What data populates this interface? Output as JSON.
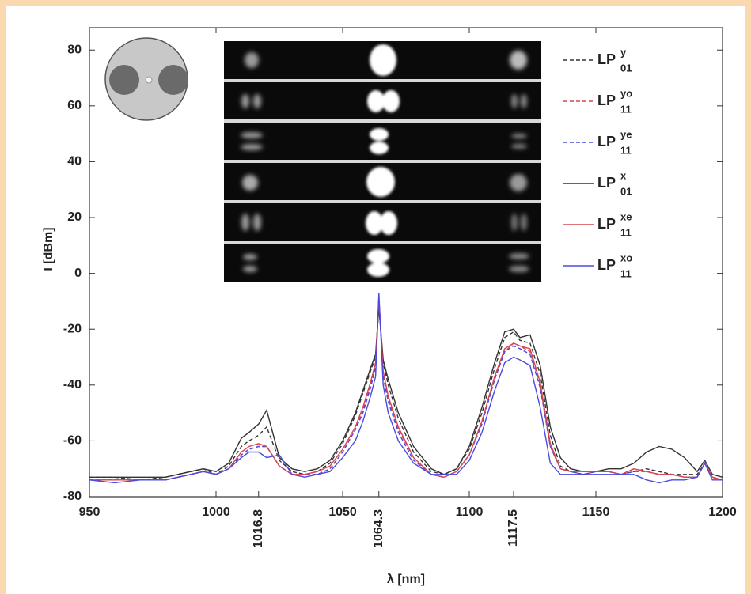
{
  "chart_data": {
    "type": "line",
    "xlabel": "λ [nm]",
    "ylabel": "I [dBm]",
    "xlim": [
      950,
      1200
    ],
    "ylim": [
      -80,
      88
    ],
    "xticks": [
      950,
      1000,
      1050,
      1100,
      1150,
      1200
    ],
    "peak_ticks": [
      1016.8,
      1064.3,
      1117.5
    ],
    "yticks": [
      -80,
      -60,
      -40,
      -20,
      0,
      20,
      40,
      60,
      80
    ],
    "x": [
      950,
      960,
      970,
      980,
      990,
      995,
      1000,
      1005,
      1010,
      1013,
      1016.8,
      1020,
      1025,
      1030,
      1035,
      1040,
      1045,
      1050,
      1055,
      1058,
      1061,
      1063,
      1064.3,
      1066,
      1068,
      1072,
      1078,
      1085,
      1090,
      1095,
      1100,
      1105,
      1110,
      1114,
      1117.5,
      1120,
      1124,
      1128,
      1132,
      1136,
      1140,
      1145,
      1150,
      1155,
      1160,
      1165,
      1170,
      1175,
      1180,
      1185,
      1190,
      1193,
      1196,
      1200
    ],
    "series": [
      {
        "name": "LP",
        "superscript": "y",
        "subscript": "01",
        "color": "#333333",
        "dash": true,
        "values": [
          -73,
          -73,
          -74,
          -73,
          -71,
          -70,
          -72,
          -69,
          -62,
          -60,
          -58,
          -55,
          -67,
          -71,
          -72,
          -71,
          -68,
          -61,
          -51,
          -43,
          -35,
          -30,
          -12,
          -32,
          -40,
          -52,
          -64,
          -71,
          -72,
          -70,
          -63,
          -50,
          -34,
          -23,
          -21,
          -24,
          -25,
          -36,
          -58,
          -69,
          -71,
          -72,
          -71,
          -71,
          -72,
          -71,
          -70,
          -71,
          -72,
          -72,
          -72,
          -68,
          -73,
          -74
        ]
      },
      {
        "name": "LP",
        "superscript": "yo",
        "subscript": "11",
        "color": "#d9434f",
        "dash": true,
        "values": [
          -74,
          -74,
          -74,
          -74,
          -72,
          -71,
          -72,
          -70,
          -65,
          -63,
          -62,
          -62,
          -69,
          -72,
          -72,
          -72,
          -70,
          -64,
          -56,
          -49,
          -40,
          -33,
          -10,
          -36,
          -45,
          -56,
          -66,
          -72,
          -73,
          -71,
          -65,
          -53,
          -38,
          -28,
          -25,
          -26,
          -28,
          -40,
          -62,
          -70,
          -71,
          -72,
          -71,
          -71,
          -72,
          -70,
          -71,
          -72,
          -72,
          -73,
          -73,
          -68,
          -73,
          -74
        ]
      },
      {
        "name": "LP",
        "superscript": "ye",
        "subscript": "11",
        "color": "#4a4ae0",
        "dash": true,
        "values": [
          -74,
          -74,
          -74,
          -74,
          -72,
          -71,
          -72,
          -70,
          -65,
          -63,
          -62,
          -62,
          -69,
          -72,
          -72,
          -72,
          -70,
          -64,
          -56,
          -50,
          -41,
          -34,
          -9,
          -37,
          -46,
          -57,
          -67,
          -72,
          -73,
          -71,
          -65,
          -54,
          -38,
          -28,
          -26,
          -27,
          -29,
          -41,
          -62,
          -70,
          -71,
          -72,
          -71,
          -71,
          -72,
          -71,
          -71,
          -72,
          -72,
          -73,
          -73,
          -68,
          -73,
          -74
        ]
      },
      {
        "name": "LP",
        "superscript": "x",
        "subscript": "01",
        "color": "#333333",
        "dash": false,
        "values": [
          -73,
          -73,
          -73,
          -73,
          -71,
          -70,
          -71,
          -68,
          -59,
          -57,
          -54,
          -49,
          -66,
          -70,
          -71,
          -70,
          -67,
          -60,
          -50,
          -42,
          -34,
          -29,
          -12,
          -31,
          -38,
          -50,
          -62,
          -70,
          -72,
          -70,
          -62,
          -48,
          -32,
          -21,
          -20,
          -23,
          -22,
          -33,
          -55,
          -66,
          -70,
          -71,
          -71,
          -70,
          -70,
          -68,
          -64,
          -62,
          -63,
          -66,
          -71,
          -67,
          -72,
          -73
        ]
      },
      {
        "name": "LP",
        "superscript": "xe",
        "subscript": "11",
        "color": "#d9434f",
        "dash": false,
        "values": [
          -74,
          -74,
          -74,
          -74,
          -72,
          -71,
          -72,
          -70,
          -64,
          -62,
          -61,
          -62,
          -69,
          -72,
          -72,
          -71,
          -69,
          -63,
          -55,
          -48,
          -39,
          -32,
          -9,
          -35,
          -44,
          -55,
          -66,
          -72,
          -73,
          -71,
          -65,
          -53,
          -37,
          -27,
          -25,
          -26,
          -27,
          -39,
          -61,
          -70,
          -71,
          -71,
          -71,
          -71,
          -72,
          -70,
          -71,
          -72,
          -72,
          -73,
          -73,
          -68,
          -73,
          -74
        ]
      },
      {
        "name": "LP",
        "superscript": "xo",
        "subscript": "11",
        "color": "#4a4ae0",
        "dash": false,
        "values": [
          -74,
          -75,
          -74,
          -74,
          -72,
          -71,
          -72,
          -70,
          -66,
          -64,
          -64,
          -66,
          -65,
          -72,
          -73,
          -72,
          -71,
          -66,
          -60,
          -53,
          -44,
          -37,
          -7,
          -40,
          -50,
          -60,
          -68,
          -72,
          -72,
          -72,
          -67,
          -57,
          -42,
          -32,
          -30,
          -31,
          -33,
          -48,
          -68,
          -72,
          -72,
          -72,
          -72,
          -72,
          -72,
          -72,
          -74,
          -75,
          -74,
          -74,
          -73,
          -68,
          -74,
          -74
        ]
      }
    ]
  }
}
